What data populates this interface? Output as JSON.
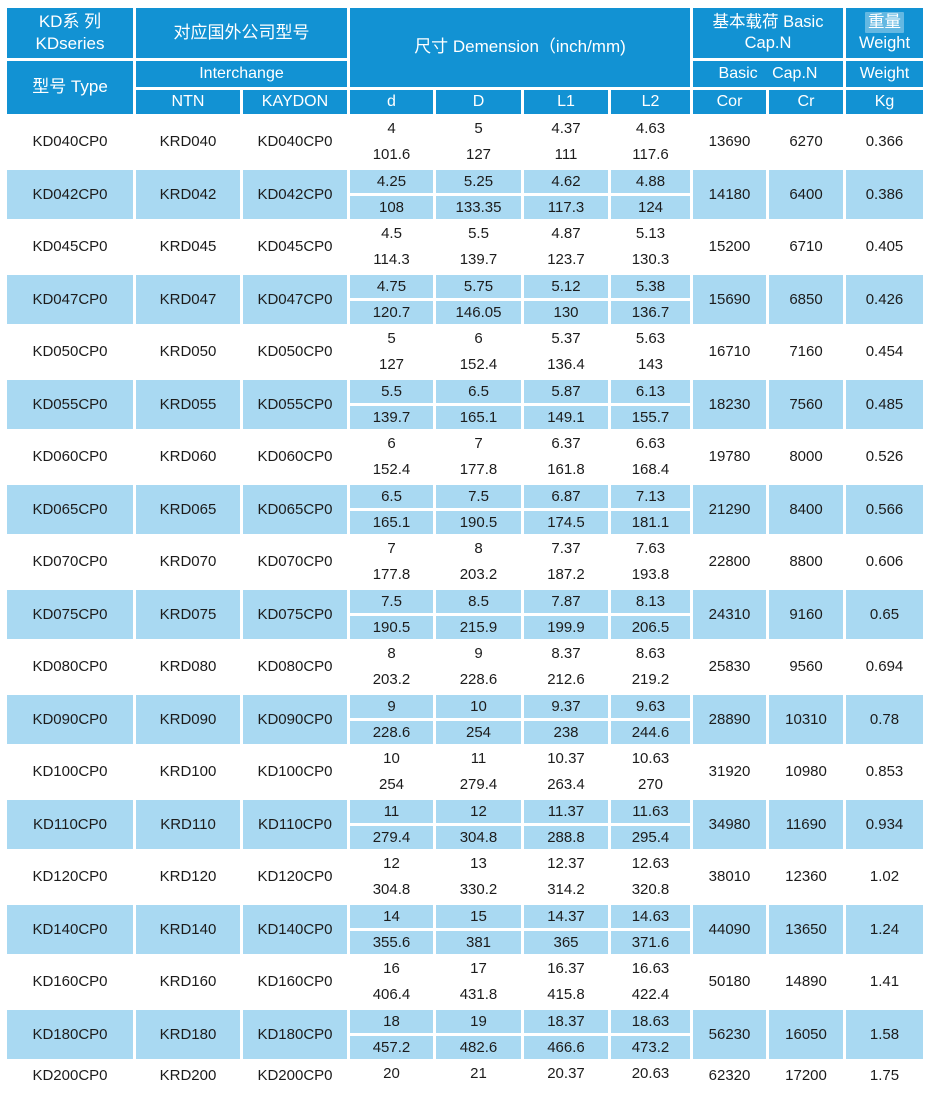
{
  "colors": {
    "header_blue": "#1292d3",
    "row_blue": "#a9d9f2",
    "page_bg": "#ffffff",
    "header_text": "#ffffff",
    "body_text": "#1c1c1c",
    "weight_highlight": "rgba(255,255,255,0.35)"
  },
  "header": {
    "series_line1": "KD系 列",
    "series_line2": "KDseries",
    "type": "型号 Type",
    "interchange_group": "对应国外公司型号",
    "interchange": "Interchange",
    "ntn": "NTN",
    "kaydon": "KAYDON",
    "dimension": "尺寸 Demension（inch/mm)",
    "load_group_line1": "基本载荷 Basic",
    "load_group_line2": "Cap.N",
    "basic_cap": "Basic Cap.N",
    "weight_cn": "重量",
    "weight_en": "Weight",
    "weight_row2": "Weight",
    "sub": [
      "d",
      "D",
      "L1",
      "L2",
      "Cor",
      "Cr",
      "Kg"
    ]
  },
  "rows": [
    {
      "type": "KD040CP0",
      "ntn": "KRD040",
      "kaydon": "KD040CP0",
      "d": [
        "4",
        "101.6"
      ],
      "D": [
        "5",
        "127"
      ],
      "L1": [
        "4.37",
        "111"
      ],
      "L2": [
        "4.63",
        "117.6"
      ],
      "cor": "13690",
      "cr": "6270",
      "kg": "0.366"
    },
    {
      "type": "KD042CP0",
      "ntn": "KRD042",
      "kaydon": "KD042CP0",
      "d": [
        "4.25",
        "108"
      ],
      "D": [
        "5.25",
        "133.35"
      ],
      "L1": [
        "4.62",
        "117.3"
      ],
      "L2": [
        "4.88",
        "124"
      ],
      "cor": "14180",
      "cr": "6400",
      "kg": "0.386"
    },
    {
      "type": "KD045CP0",
      "ntn": "KRD045",
      "kaydon": "KD045CP0",
      "d": [
        "4.5",
        "114.3"
      ],
      "D": [
        "5.5",
        "139.7"
      ],
      "L1": [
        "4.87",
        "123.7"
      ],
      "L2": [
        "5.13",
        "130.3"
      ],
      "cor": "15200",
      "cr": "6710",
      "kg": "0.405"
    },
    {
      "type": "KD047CP0",
      "ntn": "KRD047",
      "kaydon": "KD047CP0",
      "d": [
        "4.75",
        "120.7"
      ],
      "D": [
        "5.75",
        "146.05"
      ],
      "L1": [
        "5.12",
        "130"
      ],
      "L2": [
        "5.38",
        "136.7"
      ],
      "cor": "15690",
      "cr": "6850",
      "kg": "0.426"
    },
    {
      "type": "KD050CP0",
      "ntn": "KRD050",
      "kaydon": "KD050CP0",
      "d": [
        "5",
        "127"
      ],
      "D": [
        "6",
        "152.4"
      ],
      "L1": [
        "5.37",
        "136.4"
      ],
      "L2": [
        "5.63",
        "143"
      ],
      "cor": "16710",
      "cr": "7160",
      "kg": "0.454"
    },
    {
      "type": "KD055CP0",
      "ntn": "KRD055",
      "kaydon": "KD055CP0",
      "d": [
        "5.5",
        "139.7"
      ],
      "D": [
        "6.5",
        "165.1"
      ],
      "L1": [
        "5.87",
        "149.1"
      ],
      "L2": [
        "6.13",
        "155.7"
      ],
      "cor": "18230",
      "cr": "7560",
      "kg": "0.485"
    },
    {
      "type": "KD060CP0",
      "ntn": "KRD060",
      "kaydon": "KD060CP0",
      "d": [
        "6",
        "152.4"
      ],
      "D": [
        "7",
        "177.8"
      ],
      "L1": [
        "6.37",
        "161.8"
      ],
      "L2": [
        "6.63",
        "168.4"
      ],
      "cor": "19780",
      "cr": "8000",
      "kg": "0.526"
    },
    {
      "type": "KD065CP0",
      "ntn": "KRD065",
      "kaydon": "KD065CP0",
      "d": [
        "6.5",
        "165.1"
      ],
      "D": [
        "7.5",
        "190.5"
      ],
      "L1": [
        "6.87",
        "174.5"
      ],
      "L2": [
        "7.13",
        "181.1"
      ],
      "cor": "21290",
      "cr": "8400",
      "kg": "0.566"
    },
    {
      "type": "KD070CP0",
      "ntn": "KRD070",
      "kaydon": "KD070CP0",
      "d": [
        "7",
        "177.8"
      ],
      "D": [
        "8",
        "203.2"
      ],
      "L1": [
        "7.37",
        "187.2"
      ],
      "L2": [
        "7.63",
        "193.8"
      ],
      "cor": "22800",
      "cr": "8800",
      "kg": "0.606"
    },
    {
      "type": "KD075CP0",
      "ntn": "KRD075",
      "kaydon": "KD075CP0",
      "d": [
        "7.5",
        "190.5"
      ],
      "D": [
        "8.5",
        "215.9"
      ],
      "L1": [
        "7.87",
        "199.9"
      ],
      "L2": [
        "8.13",
        "206.5"
      ],
      "cor": "24310",
      "cr": "9160",
      "kg": "0.65"
    },
    {
      "type": "KD080CP0",
      "ntn": "KRD080",
      "kaydon": "KD080CP0",
      "d": [
        "8",
        "203.2"
      ],
      "D": [
        "9",
        "228.6"
      ],
      "L1": [
        "8.37",
        "212.6"
      ],
      "L2": [
        "8.63",
        "219.2"
      ],
      "cor": "25830",
      "cr": "9560",
      "kg": "0.694"
    },
    {
      "type": "KD090CP0",
      "ntn": "KRD090",
      "kaydon": "KD090CP0",
      "d": [
        "9",
        "228.6"
      ],
      "D": [
        "10",
        "254"
      ],
      "L1": [
        "9.37",
        "238"
      ],
      "L2": [
        "9.63",
        "244.6"
      ],
      "cor": "28890",
      "cr": "10310",
      "kg": "0.78"
    },
    {
      "type": "KD100CP0",
      "ntn": "KRD100",
      "kaydon": "KD100CP0",
      "d": [
        "10",
        "254"
      ],
      "D": [
        "11",
        "279.4"
      ],
      "L1": [
        "10.37",
        "263.4"
      ],
      "L2": [
        "10.63",
        "270"
      ],
      "cor": "31920",
      "cr": "10980",
      "kg": "0.853"
    },
    {
      "type": "KD110CP0",
      "ntn": "KRD110",
      "kaydon": "KD110CP0",
      "d": [
        "11",
        "279.4"
      ],
      "D": [
        "12",
        "304.8"
      ],
      "L1": [
        "11.37",
        "288.8"
      ],
      "L2": [
        "11.63",
        "295.4"
      ],
      "cor": "34980",
      "cr": "11690",
      "kg": "0.934"
    },
    {
      "type": "KD120CP0",
      "ntn": "KRD120",
      "kaydon": "KD120CP0",
      "d": [
        "12",
        "304.8"
      ],
      "D": [
        "13",
        "330.2"
      ],
      "L1": [
        "12.37",
        "314.2"
      ],
      "L2": [
        "12.63",
        "320.8"
      ],
      "cor": "38010",
      "cr": "12360",
      "kg": "1.02"
    },
    {
      "type": "KD140CP0",
      "ntn": "KRD140",
      "kaydon": "KD140CP0",
      "d": [
        "14",
        "355.6"
      ],
      "D": [
        "15",
        "381"
      ],
      "L1": [
        "14.37",
        "365"
      ],
      "L2": [
        "14.63",
        "371.6"
      ],
      "cor": "44090",
      "cr": "13650",
      "kg": "1.24"
    },
    {
      "type": "KD160CP0",
      "ntn": "KRD160",
      "kaydon": "KD160CP0",
      "d": [
        "16",
        "406.4"
      ],
      "D": [
        "17",
        "431.8"
      ],
      "L1": [
        "16.37",
        "415.8"
      ],
      "L2": [
        "16.63",
        "422.4"
      ],
      "cor": "50180",
      "cr": "14890",
      "kg": "1.41"
    },
    {
      "type": "KD180CP0",
      "ntn": "KRD180",
      "kaydon": "KD180CP0",
      "d": [
        "18",
        "457.2"
      ],
      "D": [
        "19",
        "482.6"
      ],
      "L1": [
        "18.37",
        "466.6"
      ],
      "L2": [
        "18.63",
        "473.2"
      ],
      "cor": "56230",
      "cr": "16050",
      "kg": "1.58"
    },
    {
      "type": "KD200CP0",
      "ntn": "KRD200",
      "kaydon": "KD200CP0",
      "d": [
        "20",
        ""
      ],
      "D": [
        "21",
        ""
      ],
      "L1": [
        "20.37",
        ""
      ],
      "L2": [
        "20.63",
        ""
      ],
      "cor": "62320",
      "cr": "17200",
      "kg": "1.75",
      "cut": true
    }
  ]
}
